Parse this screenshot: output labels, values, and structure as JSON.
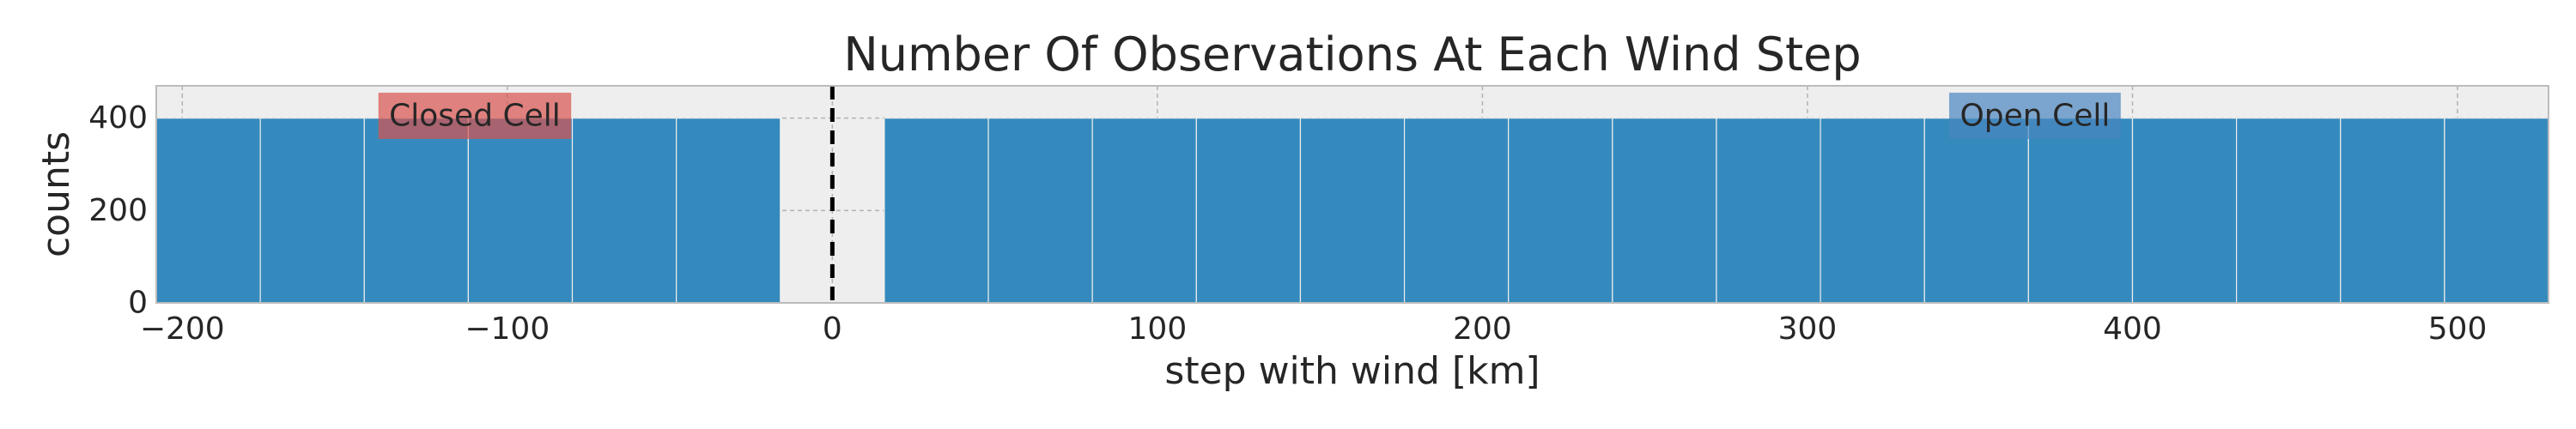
{
  "chart_data": {
    "type": "bar",
    "title": "Number Of Observations At Each Wind Step",
    "xlabel": "step with wind [km]",
    "ylabel": "counts",
    "xlim": [
      -208,
      528
    ],
    "ylim": [
      0,
      470
    ],
    "xticks": [
      -200,
      -100,
      0,
      100,
      200,
      300,
      400,
      500
    ],
    "xtick_labels": [
      "−200",
      "−100",
      "0",
      "100",
      "200",
      "300",
      "400",
      "500"
    ],
    "yticks": [
      0,
      200,
      400
    ],
    "ytick_labels": [
      "0",
      "200",
      "400"
    ],
    "bin_width": 32,
    "bins": [
      {
        "x0": -208,
        "x1": -176,
        "value": 400
      },
      {
        "x0": -176,
        "x1": -144,
        "value": 400
      },
      {
        "x0": -144,
        "x1": -112,
        "value": 400
      },
      {
        "x0": -112,
        "x1": -80,
        "value": 400
      },
      {
        "x0": -80,
        "x1": -48,
        "value": 400
      },
      {
        "x0": -48,
        "x1": -16,
        "value": 400
      },
      {
        "x0": 16,
        "x1": 48,
        "value": 400
      },
      {
        "x0": 48,
        "x1": 80,
        "value": 400
      },
      {
        "x0": 80,
        "x1": 112,
        "value": 400
      },
      {
        "x0": 112,
        "x1": 144,
        "value": 400
      },
      {
        "x0": 144,
        "x1": 176,
        "value": 400
      },
      {
        "x0": 176,
        "x1": 208,
        "value": 400
      },
      {
        "x0": 208,
        "x1": 240,
        "value": 400
      },
      {
        "x0": 240,
        "x1": 272,
        "value": 400
      },
      {
        "x0": 272,
        "x1": 304,
        "value": 400
      },
      {
        "x0": 304,
        "x1": 336,
        "value": 400
      },
      {
        "x0": 336,
        "x1": 368,
        "value": 400
      },
      {
        "x0": 368,
        "x1": 400,
        "value": 400
      },
      {
        "x0": 400,
        "x1": 432,
        "value": 400
      },
      {
        "x0": 432,
        "x1": 464,
        "value": 400
      },
      {
        "x0": 464,
        "x1": 496,
        "value": 400
      },
      {
        "x0": 496,
        "x1": 528,
        "value": 400
      }
    ],
    "vline": {
      "x": 0,
      "style": "dashed",
      "color": "#000000"
    },
    "annotations": [
      {
        "text": "Closed Cell",
        "x": -110,
        "y": 405,
        "color": "#d9534f"
      },
      {
        "text": "Open Cell",
        "x": 370,
        "y": 405,
        "color": "#4a86c0"
      }
    ],
    "bar_color": "#348abd",
    "grid": true,
    "background": "#eeeeee"
  }
}
